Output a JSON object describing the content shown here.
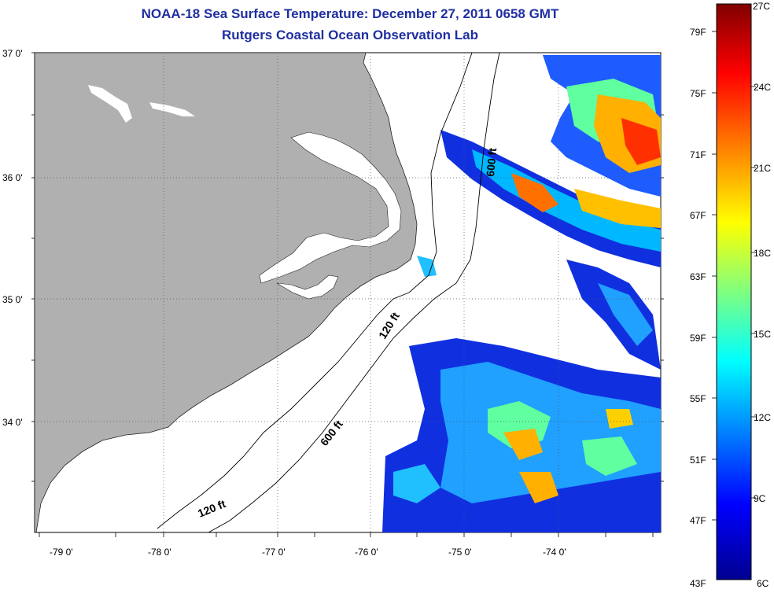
{
  "title": {
    "line1": "NOAA-18 Sea Surface Temperature:  December 27, 2011 0658 GMT",
    "line2": "Rutgers Coastal Ocean Observation Lab"
  },
  "map": {
    "lat_labels": [
      "37 0'",
      "36 0'",
      "35 0'",
      "34 0'"
    ],
    "lon_labels": [
      "-79 0'",
      "-78 0'",
      "-77 0'",
      "-76 0'",
      "-75 0'",
      "-74 0'"
    ],
    "contours": [
      "600 ft",
      "120 ft",
      "600 ft",
      "120 ft"
    ],
    "colors": {
      "land": "#b0b0b0",
      "ocean": "#ffffff"
    }
  },
  "colorbar": {
    "fahrenheit": [
      "79F",
      "75F",
      "71F",
      "67F",
      "63F",
      "59F",
      "55F",
      "51F",
      "47F",
      "43F"
    ],
    "celsius": [
      "27C",
      "24C",
      "21C",
      "18C",
      "15C",
      "12C",
      "9C",
      "6C"
    ],
    "colors": [
      "#00008f",
      "#0000ff",
      "#00ffff",
      "#ffff00",
      "#ff8000",
      "#ff0000",
      "#800000"
    ]
  }
}
